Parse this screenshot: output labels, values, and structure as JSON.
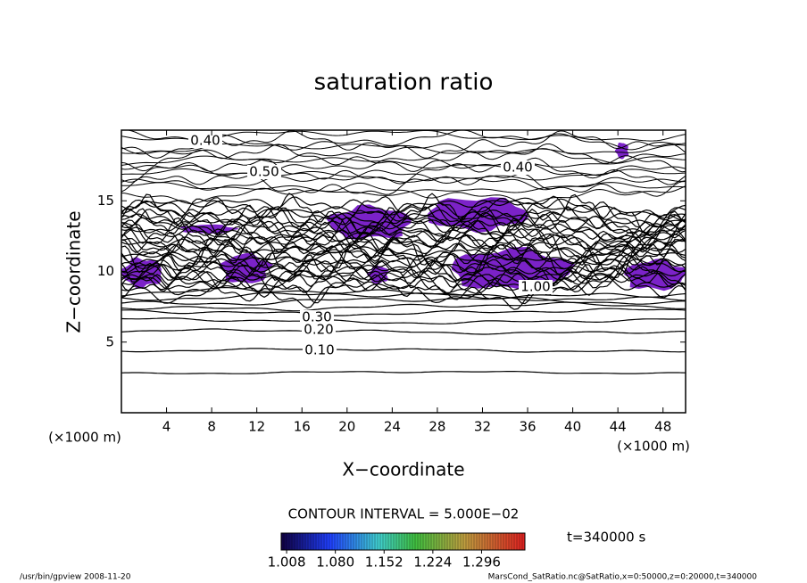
{
  "chart_data": {
    "type": "contour",
    "title": "saturation ratio",
    "x_label": "X−coordinate",
    "y_label": "Z−coordinate",
    "x_unit_left": "(×1000 m)",
    "x_unit_right": "(×1000 m)",
    "xlim": [
      0,
      50
    ],
    "ylim": [
      0,
      20
    ],
    "xticks": [
      4,
      8,
      12,
      16,
      20,
      24,
      28,
      32,
      36,
      40,
      44,
      48
    ],
    "yticks": [
      5,
      10,
      15
    ],
    "contour_labels": [
      "0.40",
      "0.50",
      "0.40",
      "0.30",
      "0.20",
      "0.10",
      "1.00"
    ],
    "contour_interval_text": "CONTOUR INTERVAL = 5.000E−02",
    "fill_color": "#7b22c8",
    "colorbar": {
      "lim": [
        1.0,
        1.36
      ],
      "ticks": [
        1.008,
        {
          "value": 1.08,
          "label": "1.080"
        },
        1.152,
        1.224,
        1.296
      ]
    },
    "time_text": "t=340000 s",
    "footer_left": "/usr/bin/gpview  2008-11-20",
    "footer_right": "MarsCond_SatRatio.nc@SatRatio,x=0:50000,z=0:20000,t=340000"
  }
}
